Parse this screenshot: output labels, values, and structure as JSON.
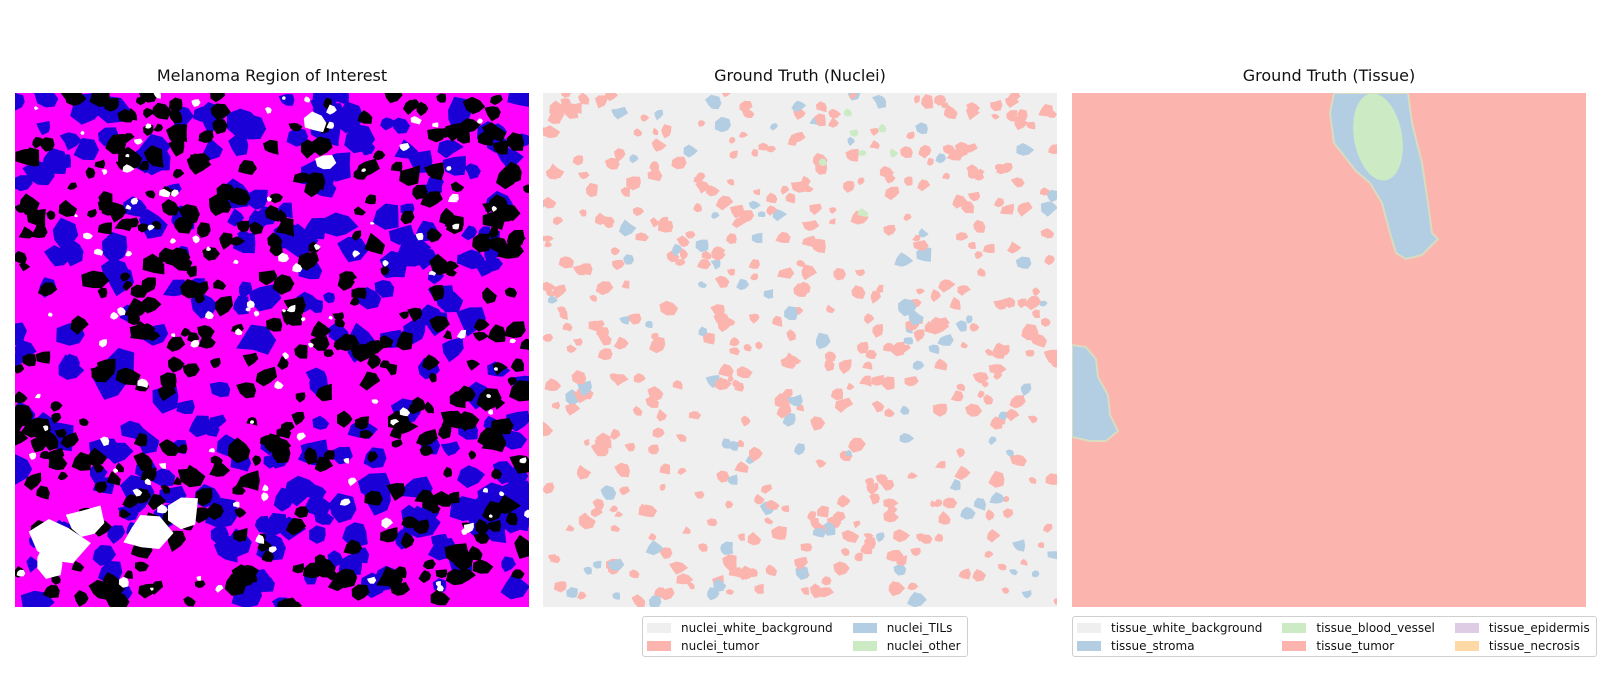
{
  "panels": [
    {
      "title": "Melanoma Region of Interest"
    },
    {
      "title": "Ground Truth (Nuclei)"
    },
    {
      "title": "Ground Truth (Tissue)"
    }
  ],
  "nuclei_legend": [
    {
      "label": "nuclei_white_background",
      "color": "#efefef"
    },
    {
      "label": "nuclei_TILs",
      "color": "#b3cde3"
    },
    {
      "label": "nuclei_tumor",
      "color": "#fbb4ae"
    },
    {
      "label": "nuclei_other",
      "color": "#ccebc5"
    }
  ],
  "tissue_legend": [
    {
      "label": "tissue_white_background",
      "color": "#efefef"
    },
    {
      "label": "tissue_blood_vessel",
      "color": "#ccebc5"
    },
    {
      "label": "tissue_epidermis",
      "color": "#decbe4"
    },
    {
      "label": "tissue_stroma",
      "color": "#b3cde3"
    },
    {
      "label": "tissue_tumor",
      "color": "#fbb4ae"
    },
    {
      "label": "tissue_necrosis",
      "color": "#fed9a6"
    }
  ],
  "colors": {
    "he_background": "#ff00ff",
    "he_nucleus": "#000000",
    "he_stain": "#1a00d6",
    "he_lumen": "#ffffff",
    "nuclei_background": "#efefef",
    "tumor": "#fbb4ae",
    "stroma": "#b3cde3",
    "vessel": "#ccebc5"
  }
}
